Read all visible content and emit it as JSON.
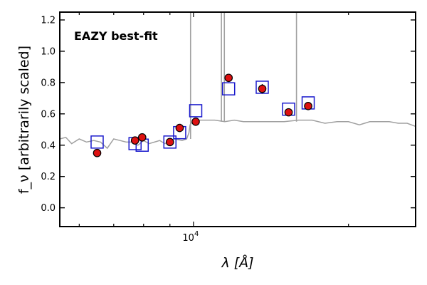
{
  "chart_data": {
    "type": "scatter",
    "title": "",
    "annotation": "EAZY best-fit",
    "xlabel": "λ [Å]",
    "ylabel": "f_ν [arbitrarily scaled]",
    "xscale": "log",
    "xlim": [
      5500,
      27000
    ],
    "ylim": [
      -0.12,
      1.25
    ],
    "x_ticks": [
      10000
    ],
    "x_tick_labels": [
      "10^4"
    ],
    "y_ticks": [
      0.0,
      0.2,
      0.4,
      0.6,
      0.8,
      1.0,
      1.2
    ],
    "y_tick_labels": [
      "0.0",
      "0.2",
      "0.4",
      "0.6",
      "0.8",
      "1.0",
      "1.2"
    ],
    "grid": false,
    "colors": {
      "observed": "#dd1111",
      "model_box": "#1a1acc",
      "spectrum": "#a0a0a0",
      "annotation": "#ff0000"
    },
    "series": [
      {
        "kind": "observed",
        "x": [
          6500,
          7700,
          7950,
          9000,
          9400,
          10100,
          11700,
          13600,
          15300,
          16700
        ],
        "y": [
          0.35,
          0.43,
          0.45,
          0.42,
          0.51,
          0.55,
          0.83,
          0.76,
          0.61,
          0.65
        ],
        "yerr": [
          0.0,
          0.0,
          0.0,
          0.0,
          0.0,
          0.0,
          0.01,
          0.03,
          0.02,
          0.0
        ]
      },
      {
        "kind": "model",
        "x": [
          6500,
          7700,
          7950,
          9000,
          9400,
          10100,
          11700,
          13600,
          15300,
          16700
        ],
        "y": [
          0.42,
          0.41,
          0.4,
          0.42,
          0.48,
          0.62,
          0.76,
          0.77,
          0.63,
          0.67
        ]
      },
      {
        "kind": "spectrum",
        "x": [
          5500,
          5650,
          5800,
          6000,
          6200,
          6400,
          6600,
          6800,
          7000,
          7200,
          7400,
          7600,
          7800,
          8000,
          8200,
          8400,
          8600,
          8800,
          9000,
          9200,
          9500,
          9700,
          9800,
          9850,
          9900,
          10000,
          10300,
          10600,
          11000,
          11500,
          12000,
          12500,
          13000,
          14000,
          15000,
          16000,
          17000,
          18000,
          19000,
          20000,
          21000,
          22000,
          23000,
          24000,
          25000,
          26000,
          27000
        ],
        "y": [
          0.44,
          0.45,
          0.41,
          0.44,
          0.42,
          0.43,
          0.42,
          0.38,
          0.44,
          0.43,
          0.42,
          0.42,
          0.4,
          0.43,
          0.41,
          0.42,
          0.43,
          0.41,
          0.43,
          0.44,
          0.43,
          0.44,
          0.48,
          0.53,
          0.54,
          0.55,
          0.56,
          0.56,
          0.56,
          0.55,
          0.56,
          0.55,
          0.55,
          0.55,
          0.55,
          0.56,
          0.56,
          0.54,
          0.55,
          0.55,
          0.53,
          0.55,
          0.55,
          0.55,
          0.54,
          0.54,
          0.52
        ]
      },
      {
        "kind": "emission_lines",
        "x": [
          9870,
          11330,
          11480,
          15850
        ],
        "peak": [
          1.25,
          1.25,
          1.25,
          1.25
        ],
        "base": [
          0.44,
          0.55,
          0.55,
          0.55
        ]
      }
    ]
  }
}
